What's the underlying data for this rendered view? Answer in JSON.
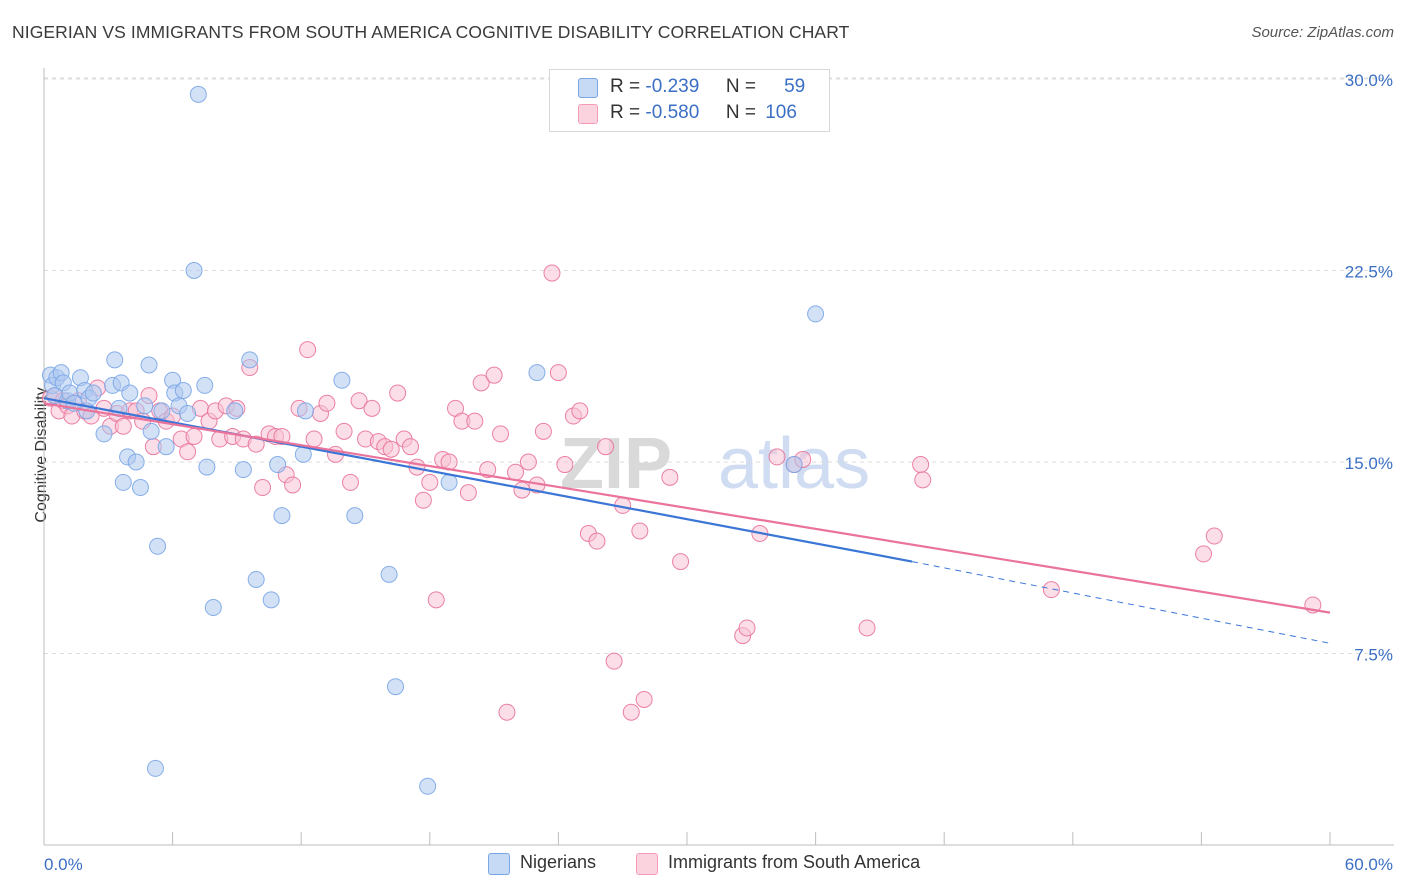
{
  "title": "NIGERIAN VS IMMIGRANTS FROM SOUTH AMERICA COGNITIVE DISABILITY CORRELATION CHART",
  "source": "Source: ZipAtlas.com",
  "watermark": {
    "part1": "ZIP",
    "part2": "atlas"
  },
  "legend": {
    "rows": [
      {
        "r_label": "R =",
        "r_value": "-0.239",
        "n_label": "N =",
        "n_value": "59",
        "color": "#7aa6e6"
      },
      {
        "r_label": "R =",
        "r_value": "-0.580",
        "n_label": "N =",
        "n_value": "106",
        "color": "#f59bb8"
      }
    ]
  },
  "bottom_legend": [
    {
      "label": "Nigerians",
      "color": "#aec8f0"
    },
    {
      "label": "Immigrants from South America",
      "color": "#f8c2d3"
    }
  ],
  "chart_data": {
    "type": "scatter",
    "title": "NIGERIAN VS IMMIGRANTS FROM SOUTH AMERICA COGNITIVE DISABILITY CORRELATION CHART",
    "xlabel": "",
    "ylabel": "Cognitive Disability",
    "xlim": [
      0,
      60
    ],
    "ylim": [
      0,
      31
    ],
    "x_ticks": [
      "0.0%",
      "60.0%"
    ],
    "y_ticks": [
      {
        "value": 7.5,
        "label": "7.5%"
      },
      {
        "value": 15.0,
        "label": "15.0%"
      },
      {
        "value": 22.5,
        "label": "22.5%"
      },
      {
        "value": 30.0,
        "label": "30.0%"
      }
    ],
    "grid": true,
    "legend_position": "top-center",
    "series": [
      {
        "name": "Nigerians",
        "color": "#7aa6e6",
        "fill": "#aec8f0",
        "trend": {
          "x": [
            0,
            40.5
          ],
          "y": [
            17.5,
            11.1
          ],
          "dashed_extension_to_x": 60,
          "dashed_extension_y": 7.9
        },
        "points": [
          [
            0.3,
            18.4
          ],
          [
            0.4,
            18.0
          ],
          [
            0.5,
            17.6
          ],
          [
            0.6,
            18.3
          ],
          [
            0.8,
            18.5
          ],
          [
            0.9,
            18.1
          ],
          [
            1.1,
            17.4
          ],
          [
            1.2,
            17.7
          ],
          [
            1.4,
            17.3
          ],
          [
            1.7,
            18.3
          ],
          [
            1.9,
            17.8
          ],
          [
            2.0,
            17.0
          ],
          [
            2.1,
            17.5
          ],
          [
            2.3,
            17.7
          ],
          [
            2.8,
            16.1
          ],
          [
            3.2,
            18.0
          ],
          [
            3.3,
            19.0
          ],
          [
            3.5,
            17.1
          ],
          [
            3.6,
            18.1
          ],
          [
            3.7,
            14.2
          ],
          [
            3.9,
            15.2
          ],
          [
            4.0,
            17.7
          ],
          [
            4.3,
            15.0
          ],
          [
            4.5,
            14.0
          ],
          [
            4.7,
            17.2
          ],
          [
            4.9,
            18.8
          ],
          [
            5.0,
            16.2
          ],
          [
            5.3,
            11.7
          ],
          [
            5.5,
            17.0
          ],
          [
            5.7,
            15.6
          ],
          [
            6.0,
            18.2
          ],
          [
            6.1,
            17.7
          ],
          [
            6.3,
            17.2
          ],
          [
            6.5,
            17.8
          ],
          [
            6.7,
            16.9
          ],
          [
            7.0,
            22.5
          ],
          [
            7.2,
            29.4
          ],
          [
            7.5,
            18.0
          ],
          [
            7.6,
            14.8
          ],
          [
            7.9,
            9.3
          ],
          [
            8.9,
            17.0
          ],
          [
            9.3,
            14.7
          ],
          [
            9.6,
            19.0
          ],
          [
            9.9,
            10.4
          ],
          [
            10.6,
            9.6
          ],
          [
            10.9,
            14.9
          ],
          [
            11.1,
            12.9
          ],
          [
            12.1,
            15.3
          ],
          [
            12.2,
            17.0
          ],
          [
            13.9,
            18.2
          ],
          [
            14.5,
            12.9
          ],
          [
            16.1,
            10.6
          ],
          [
            16.4,
            6.2
          ],
          [
            17.9,
            2.3
          ],
          [
            18.9,
            14.2
          ],
          [
            23.0,
            18.5
          ],
          [
            35.0,
            14.9
          ],
          [
            36.0,
            20.8
          ],
          [
            5.2,
            3.0
          ]
        ]
      },
      {
        "name": "Immigrants from South America",
        "color": "#e9739b",
        "fill": "#f8c2d3",
        "trend": {
          "x": [
            0,
            60
          ],
          "y": [
            17.3,
            9.1
          ]
        },
        "points": [
          [
            0.3,
            17.5
          ],
          [
            0.5,
            17.6
          ],
          [
            0.7,
            17.0
          ],
          [
            0.9,
            17.4
          ],
          [
            1.1,
            17.2
          ],
          [
            1.3,
            16.8
          ],
          [
            1.6,
            17.4
          ],
          [
            1.9,
            17.0
          ],
          [
            2.2,
            16.8
          ],
          [
            2.5,
            17.9
          ],
          [
            2.8,
            17.1
          ],
          [
            3.1,
            16.4
          ],
          [
            3.4,
            16.9
          ],
          [
            3.7,
            16.4
          ],
          [
            4.0,
            17.0
          ],
          [
            4.3,
            17.0
          ],
          [
            4.6,
            16.6
          ],
          [
            4.9,
            17.6
          ],
          [
            5.1,
            15.6
          ],
          [
            5.4,
            17.0
          ],
          [
            5.7,
            16.6
          ],
          [
            6.0,
            16.8
          ],
          [
            6.4,
            15.9
          ],
          [
            6.7,
            15.4
          ],
          [
            7.0,
            16.0
          ],
          [
            7.3,
            17.1
          ],
          [
            7.7,
            16.6
          ],
          [
            8.0,
            17.0
          ],
          [
            8.2,
            15.9
          ],
          [
            8.5,
            17.2
          ],
          [
            8.8,
            16.0
          ],
          [
            9.0,
            17.1
          ],
          [
            9.3,
            15.9
          ],
          [
            9.6,
            18.7
          ],
          [
            9.9,
            15.7
          ],
          [
            10.2,
            14.0
          ],
          [
            10.5,
            16.1
          ],
          [
            10.8,
            16.0
          ],
          [
            11.1,
            16.0
          ],
          [
            11.3,
            14.5
          ],
          [
            11.6,
            14.1
          ],
          [
            11.9,
            17.1
          ],
          [
            12.3,
            19.4
          ],
          [
            12.6,
            15.9
          ],
          [
            12.9,
            16.9
          ],
          [
            13.2,
            17.3
          ],
          [
            13.6,
            15.3
          ],
          [
            14.0,
            16.2
          ],
          [
            14.3,
            14.2
          ],
          [
            14.7,
            17.4
          ],
          [
            15.0,
            15.9
          ],
          [
            15.3,
            17.1
          ],
          [
            15.6,
            15.8
          ],
          [
            15.9,
            15.6
          ],
          [
            16.2,
            15.5
          ],
          [
            16.5,
            17.7
          ],
          [
            16.8,
            15.9
          ],
          [
            17.1,
            15.6
          ],
          [
            17.4,
            14.8
          ],
          [
            17.7,
            13.5
          ],
          [
            18.0,
            14.2
          ],
          [
            18.3,
            9.6
          ],
          [
            18.6,
            15.1
          ],
          [
            18.9,
            15.0
          ],
          [
            19.2,
            17.1
          ],
          [
            19.5,
            16.6
          ],
          [
            19.8,
            13.8
          ],
          [
            20.1,
            16.6
          ],
          [
            20.4,
            18.1
          ],
          [
            20.7,
            14.7
          ],
          [
            21.0,
            18.4
          ],
          [
            21.3,
            16.1
          ],
          [
            21.6,
            5.2
          ],
          [
            22.0,
            14.6
          ],
          [
            22.3,
            13.9
          ],
          [
            22.6,
            15.0
          ],
          [
            23.0,
            14.1
          ],
          [
            23.3,
            16.2
          ],
          [
            23.7,
            22.4
          ],
          [
            24.0,
            18.5
          ],
          [
            24.3,
            14.9
          ],
          [
            24.7,
            16.8
          ],
          [
            25.0,
            17.0
          ],
          [
            25.4,
            12.2
          ],
          [
            25.8,
            11.9
          ],
          [
            26.2,
            15.6
          ],
          [
            26.6,
            7.2
          ],
          [
            27.0,
            13.3
          ],
          [
            27.4,
            5.2
          ],
          [
            27.8,
            12.3
          ],
          [
            28.0,
            5.7
          ],
          [
            29.2,
            14.4
          ],
          [
            29.7,
            11.1
          ],
          [
            32.6,
            8.2
          ],
          [
            32.8,
            8.5
          ],
          [
            33.4,
            12.2
          ],
          [
            34.2,
            15.2
          ],
          [
            35.0,
            14.9
          ],
          [
            38.4,
            8.5
          ],
          [
            40.9,
            14.9
          ],
          [
            41.0,
            14.3
          ],
          [
            47.0,
            10.0
          ],
          [
            54.1,
            11.4
          ],
          [
            54.6,
            12.1
          ],
          [
            59.2,
            9.4
          ],
          [
            35.4,
            15.1
          ]
        ]
      }
    ]
  }
}
